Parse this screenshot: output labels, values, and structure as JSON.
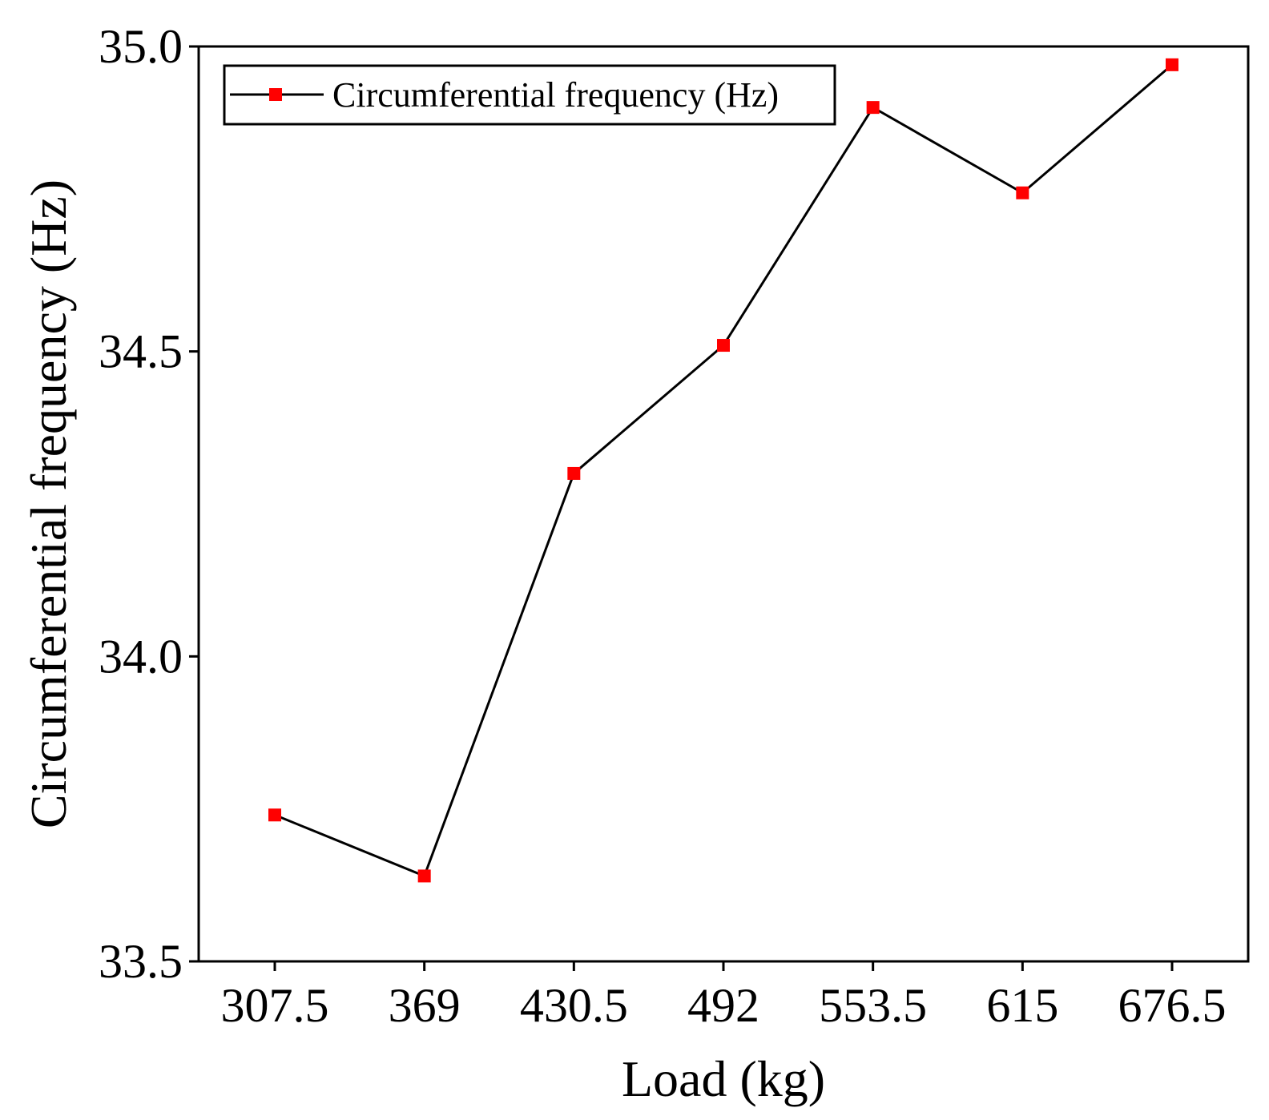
{
  "chart_data": {
    "type": "line",
    "title": "",
    "xlabel": "Load (kg)",
    "ylabel": "Circumferential frequency (Hz)",
    "categories": [
      "307.5",
      "369",
      "430.5",
      "492",
      "553.5",
      "615",
      "676.5"
    ],
    "series": [
      {
        "name": "Circumferential frequency (Hz)",
        "values": [
          33.74,
          33.64,
          34.3,
          34.51,
          34.9,
          34.76,
          34.97
        ]
      }
    ],
    "ylim": [
      33.5,
      35.0
    ],
    "yticks": [
      "33.5",
      "34.0",
      "34.5",
      "35.0"
    ],
    "grid": false,
    "legend_position": "top-left",
    "colors": {
      "line": "#000000",
      "marker": "#ff0000",
      "axis": "#000000"
    }
  }
}
